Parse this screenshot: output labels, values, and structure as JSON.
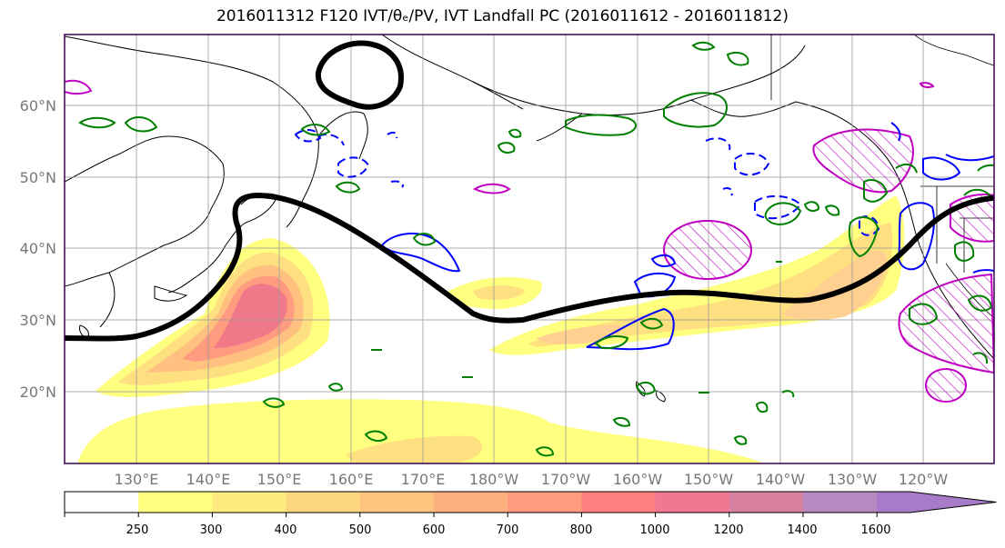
{
  "title": "2016011312 F120 IVT/θₑ/PV, IVT Landfall PC (2016011612 - 2016011812)",
  "map": {
    "lat_labels": [
      "60°N",
      "50°N",
      "40°N",
      "30°N",
      "20°N"
    ],
    "lon_labels": [
      "130°E",
      "140°E",
      "150°E",
      "160°E",
      "170°E",
      "180°W",
      "170°W",
      "160°W",
      "150°W",
      "140°W",
      "130°W",
      "120°W"
    ]
  },
  "colorbar": {
    "levels": [
      "250",
      "300",
      "400",
      "500",
      "600",
      "700",
      "800",
      "1000",
      "1200",
      "1400",
      "1600"
    ],
    "colors": [
      "#ffffff",
      "#ffff80",
      "#ffeb80",
      "#ffd680",
      "#ffc480",
      "#ffb080",
      "#ff9c80",
      "#ff8080",
      "#f07890",
      "#d880a0",
      "#b888c0",
      "#a77bc8"
    ]
  },
  "colors": {
    "ivt_contour": "#000000",
    "pv_positive": "#008000",
    "theta_e": "#0000ff",
    "landfall_pc": "#c000c0"
  }
}
